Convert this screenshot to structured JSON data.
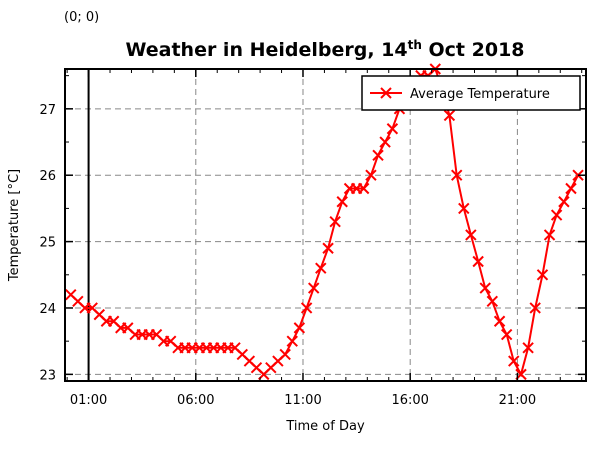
{
  "coordinate_readout": "(0; 0)",
  "chart_data": {
    "type": "line",
    "title": "Weather in Heidelberg, 14",
    "title_superscript": "th",
    "title_suffix": " Oct 2018",
    "xlabel": "Time of Day",
    "ylabel": "Temperature [°C]",
    "x_unit": "hours",
    "xlim": [
      -0.1,
      24.2
    ],
    "ylim": [
      22.9,
      27.6
    ],
    "x_ticks": [
      {
        "value": 1,
        "label": "01:00"
      },
      {
        "value": 6,
        "label": "06:00"
      },
      {
        "value": 11,
        "label": "11:00"
      },
      {
        "value": 16,
        "label": "16:00"
      },
      {
        "value": 21,
        "label": "21:00"
      }
    ],
    "y_ticks": [
      {
        "value": 23,
        "label": "23"
      },
      {
        "value": 24,
        "label": "24"
      },
      {
        "value": 25,
        "label": "25"
      },
      {
        "value": 26,
        "label": "26"
      },
      {
        "value": 27,
        "label": "27"
      }
    ],
    "grid": true,
    "vertical_marker_x": 1,
    "legend_position": "top-right",
    "series": [
      {
        "name": "Average Temperature",
        "color": "#ff0000",
        "marker": "x",
        "x": [
          0.17,
          0.5,
          0.83,
          1.17,
          1.5,
          1.83,
          2.17,
          2.5,
          2.83,
          3.17,
          3.5,
          3.83,
          4.17,
          4.5,
          4.83,
          5.17,
          5.5,
          5.83,
          6.17,
          6.5,
          6.83,
          7.17,
          7.5,
          7.83,
          8.17,
          8.5,
          8.83,
          9.17,
          9.5,
          9.83,
          10.17,
          10.5,
          10.83,
          11.17,
          11.5,
          11.83,
          12.17,
          12.5,
          12.83,
          13.17,
          13.5,
          13.83,
          14.17,
          14.5,
          14.83,
          15.17,
          15.5,
          15.83,
          16.17,
          16.5,
          16.83,
          17.17,
          17.5,
          17.83,
          18.17,
          18.5,
          18.83,
          19.17,
          19.5,
          19.83,
          20.17,
          20.5,
          20.83,
          21.17,
          21.5,
          21.83,
          22.17,
          22.5,
          22.83,
          23.17,
          23.5,
          23.83
        ],
        "y": [
          24.2,
          24.1,
          24.0,
          24.0,
          23.9,
          23.8,
          23.8,
          23.7,
          23.7,
          23.6,
          23.6,
          23.6,
          23.6,
          23.5,
          23.5,
          23.4,
          23.4,
          23.4,
          23.4,
          23.4,
          23.4,
          23.4,
          23.4,
          23.4,
          23.3,
          23.2,
          23.1,
          23.0,
          23.1,
          23.2,
          23.3,
          23.5,
          23.7,
          24.0,
          24.3,
          24.6,
          24.9,
          25.3,
          25.6,
          25.8,
          25.8,
          25.8,
          26.0,
          26.3,
          26.5,
          26.7,
          27.0,
          27.2,
          27.4,
          27.5,
          27.5,
          27.6,
          27.3,
          26.9,
          26.0,
          25.5,
          25.1,
          24.7,
          24.3,
          24.1,
          23.8,
          23.6,
          23.2,
          23.0,
          23.4,
          24.0,
          24.5,
          25.1,
          25.4,
          25.6,
          25.8,
          26.0
        ]
      }
    ]
  }
}
